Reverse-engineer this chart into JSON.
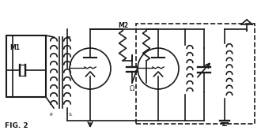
{
  "bg_color": "#ffffff",
  "line_color": "#1a1a1a",
  "title": "FIG. 2",
  "label_M1": "M1",
  "label_P": "P.",
  "label_S": "S.",
  "label_M2": "M2",
  "fig_width": 3.3,
  "fig_height": 1.75,
  "dpi": 100
}
